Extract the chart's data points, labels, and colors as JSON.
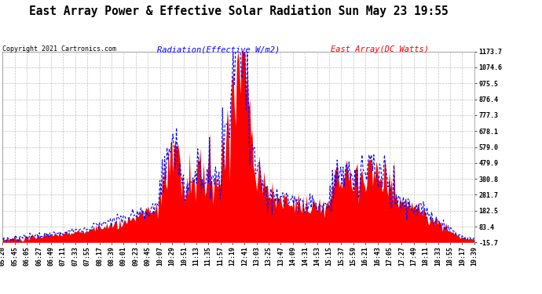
{
  "title": "East Array Power & Effective Solar Radiation Sun May 23 19:55",
  "copyright": "Copyright 2021 Cartronics.com",
  "legend_radiation": "Radiation(Effective W/m2)",
  "legend_array": "East Array(DC Watts)",
  "ymin": -15.7,
  "ymax": 1173.7,
  "ytick_vals": [
    -15.7,
    83.4,
    182.5,
    281.7,
    380.8,
    479.9,
    579.0,
    678.1,
    777.3,
    876.4,
    975.5,
    1074.6,
    1173.7
  ],
  "bg_color": "#ffffff",
  "red_color": "#ff0000",
  "blue_color": "#0000ff",
  "grid_color": "#bbbbbb",
  "title_fontsize": 10.5,
  "tick_fontsize": 6,
  "legend_fontsize": 7.5,
  "copyright_fontsize": 6,
  "x_labels": [
    "05:20",
    "05:45",
    "06:05",
    "06:27",
    "06:49",
    "07:11",
    "07:33",
    "07:55",
    "08:17",
    "08:39",
    "09:01",
    "09:23",
    "09:45",
    "10:07",
    "10:29",
    "10:51",
    "11:13",
    "11:35",
    "11:57",
    "12:19",
    "12:41",
    "13:03",
    "13:25",
    "13:47",
    "14:09",
    "14:31",
    "14:53",
    "15:15",
    "15:37",
    "15:59",
    "16:21",
    "16:43",
    "17:05",
    "17:27",
    "17:49",
    "18:11",
    "18:33",
    "18:55",
    "19:17",
    "19:39"
  ],
  "array_by_label": [
    5,
    8,
    15,
    25,
    30,
    35,
    50,
    65,
    80,
    100,
    120,
    145,
    170,
    200,
    580,
    310,
    350,
    380,
    370,
    950,
    1150,
    350,
    280,
    250,
    230,
    220,
    210,
    210,
    370,
    330,
    360,
    410,
    290,
    240,
    200,
    160,
    110,
    60,
    15,
    5
  ],
  "radiation_by_label": [
    8,
    12,
    20,
    30,
    38,
    45,
    60,
    75,
    95,
    115,
    135,
    160,
    185,
    215,
    600,
    320,
    365,
    400,
    390,
    975,
    1173,
    370,
    295,
    265,
    245,
    235,
    220,
    225,
    385,
    345,
    375,
    430,
    305,
    255,
    215,
    170,
    120,
    65,
    18,
    6
  ]
}
